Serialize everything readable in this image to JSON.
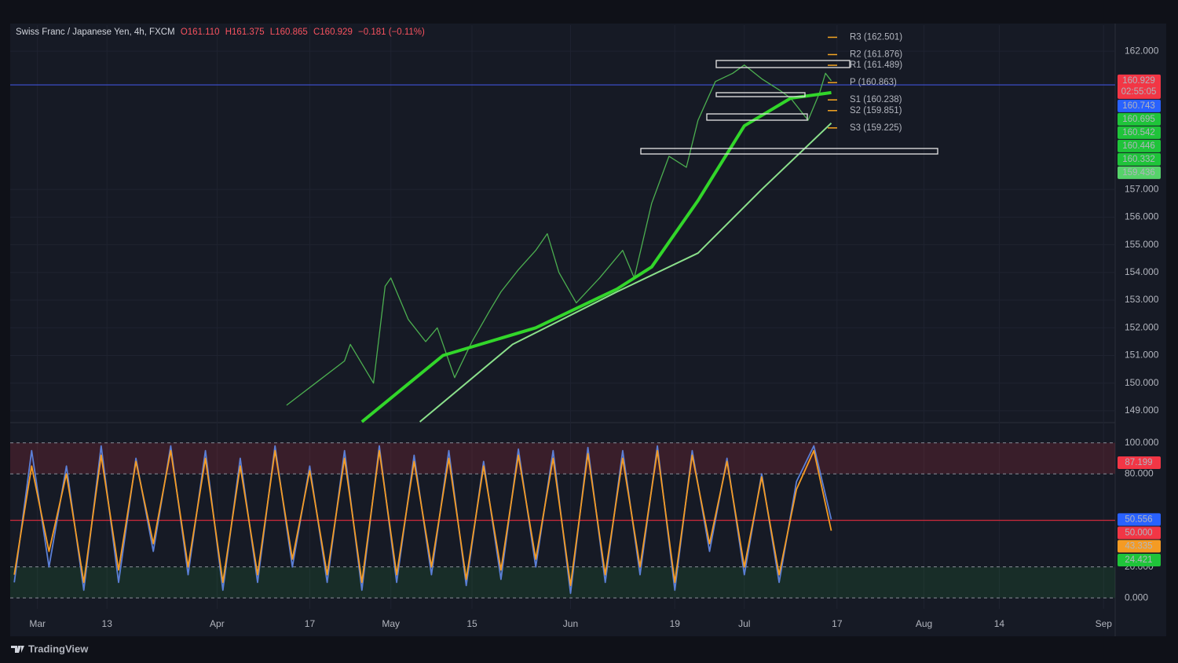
{
  "chart_data": [
    {
      "type": "line",
      "title": "Swiss Franc / Japanese Yen, 4h, FXCM",
      "ohlc": [
        "O161.110",
        "H161.375",
        "L160.865",
        "C160.929"
      ],
      "change": "−0.181 (−0.11%)",
      "xlim": [
        -4.7,
        186
      ],
      "ylim": [
        148.6,
        162.94
      ],
      "yticks": [
        {
          "value": 149,
          "label": "149.000"
        },
        {
          "value": 150,
          "label": "150.000"
        },
        {
          "value": 151,
          "label": "151.000"
        },
        {
          "value": 152,
          "label": "152.000"
        },
        {
          "value": 153,
          "label": "153.000"
        },
        {
          "value": 154,
          "label": "154.000"
        },
        {
          "value": 155,
          "label": "155.000"
        },
        {
          "value": 156,
          "label": "156.000"
        },
        {
          "value": 157,
          "label": "157.000"
        },
        {
          "value": 162,
          "label": "162.000"
        }
      ],
      "grid": true,
      "series": [
        {
          "x": [
            43,
            48,
            53,
            54,
            58,
            60,
            61,
            64,
            67,
            69,
            72,
            75,
            78,
            80,
            83,
            86,
            88,
            90,
            93,
            97,
            101,
            103,
            106,
            109,
            112,
            114,
            117,
            120,
            122,
            125,
            128,
            130,
            133,
            135,
            136,
            137
          ],
          "values": [
            149.2,
            150.0,
            150.8,
            151.4,
            150.0,
            153.5,
            153.8,
            152.3,
            151.5,
            152.0,
            150.2,
            151.5,
            152.6,
            153.3,
            154.1,
            154.8,
            155.4,
            154.0,
            152.9,
            153.8,
            154.8,
            153.8,
            156.5,
            158.2,
            157.8,
            159.5,
            160.9,
            161.2,
            161.5,
            161.0,
            160.6,
            160.3,
            159.5,
            160.5,
            161.2,
            160.929
          ],
          "color": "#4caf50",
          "width": 1.3
        },
        {
          "x": [
            56,
            70,
            86,
            100,
            106,
            114,
            122,
            130,
            137
          ],
          "values": [
            148.6,
            151.0,
            152.0,
            153.4,
            154.2,
            156.6,
            159.3,
            160.3,
            160.5
          ],
          "color": "#32d62a",
          "width": 4
        },
        {
          "x": [
            66,
            82,
            100,
            114,
            125,
            137
          ],
          "values": [
            148.6,
            151.4,
            153.3,
            154.7,
            157.0,
            159.4
          ],
          "color": "#8be08b",
          "width": 2
        }
      ],
      "pivots": [
        {
          "label": "R3 (162.501)",
          "value": 162.501
        },
        {
          "label": "R2 (161.876)",
          "value": 161.876
        },
        {
          "label": "R1 (161.489)",
          "value": 161.489
        },
        {
          "label": "P (160.863)",
          "value": 160.863
        },
        {
          "label": "S1 (160.238)",
          "value": 160.238
        },
        {
          "label": "S2 (159.851)",
          "value": 159.851
        },
        {
          "label": "S3 (159.225)",
          "value": 159.225
        }
      ],
      "price_line": {
        "value": 160.78,
        "color": "#3f51d8"
      },
      "price_tags": [
        {
          "value": 160.929,
          "label": "160.929",
          "color": "#f23645"
        },
        {
          "value": 160.743,
          "label": "160.743",
          "color": "#2962ff"
        },
        {
          "value": 160.695,
          "label": "160.695",
          "color": "#1fc43a"
        },
        {
          "value": 160.542,
          "label": "160.542",
          "color": "#1fc43a"
        },
        {
          "value": 160.446,
          "label": "160.446",
          "color": "#1fc43a"
        },
        {
          "value": 160.332,
          "label": "160.332",
          "color": "#1fc43a"
        },
        {
          "value": 159.436,
          "label": "159.436",
          "color": "#56d36a"
        }
      ],
      "countdown": "02:55:05"
    },
    {
      "type": "line",
      "xlim": [
        -4.7,
        186
      ],
      "ylim": [
        -7,
        112
      ],
      "xticks": [
        {
          "value": 0,
          "label": "Mar"
        },
        {
          "value": 12,
          "label": "13"
        },
        {
          "value": 31,
          "label": "Apr"
        },
        {
          "value": 47,
          "label": "17"
        },
        {
          "value": 61,
          "label": "May"
        },
        {
          "value": 75,
          "label": "15"
        },
        {
          "value": 92,
          "label": "Jun"
        },
        {
          "value": 110,
          "label": "19"
        },
        {
          "value": 122,
          "label": "Jul"
        },
        {
          "value": 138,
          "label": "17"
        },
        {
          "value": 153,
          "label": "Aug"
        },
        {
          "value": 166,
          "label": "14"
        },
        {
          "value": 184,
          "label": "Sep"
        }
      ],
      "yticks": [
        {
          "value": 0,
          "label": "0.000"
        },
        {
          "value": 20,
          "label": "20.000"
        },
        {
          "value": 80,
          "label": "80.000"
        },
        {
          "value": 100,
          "label": "100.000"
        }
      ],
      "upper_band": [
        80,
        100
      ],
      "lower_band": [
        0,
        20
      ],
      "midline": 50,
      "x": [
        -4,
        -1,
        2,
        5,
        8,
        11,
        14,
        17,
        20,
        23,
        26,
        29,
        32,
        35,
        38,
        41,
        44,
        47,
        50,
        53,
        56,
        59,
        62,
        65,
        68,
        71,
        74,
        77,
        80,
        83,
        86,
        89,
        92,
        95,
        98,
        101,
        104,
        107,
        110,
        113,
        116,
        119,
        122,
        125,
        128,
        131,
        134,
        137
      ],
      "series": [
        {
          "values": [
            10,
            95,
            20,
            85,
            5,
            98,
            10,
            90,
            30,
            98,
            15,
            95,
            5,
            90,
            10,
            98,
            20,
            85,
            10,
            95,
            5,
            98,
            10,
            92,
            15,
            95,
            8,
            88,
            12,
            96,
            20,
            95,
            3,
            97,
            10,
            95,
            15,
            98,
            5,
            95,
            30,
            90,
            15,
            80,
            10,
            75,
            98,
            50.556
          ],
          "color": "#5b7fd6"
        },
        {
          "values": [
            15,
            85,
            30,
            80,
            10,
            92,
            18,
            88,
            35,
            95,
            20,
            90,
            10,
            85,
            15,
            95,
            25,
            82,
            15,
            90,
            10,
            95,
            15,
            88,
            20,
            90,
            12,
            85,
            18,
            92,
            25,
            90,
            8,
            93,
            15,
            90,
            20,
            95,
            10,
            92,
            35,
            88,
            20,
            78,
            15,
            70,
            95,
            43.335
          ],
          "color": "#f59b23"
        }
      ],
      "tags": [
        {
          "value": 87.199,
          "label": "87.199",
          "color": "#f23645"
        },
        {
          "value": 50.556,
          "label": "50.556",
          "color": "#2962ff"
        },
        {
          "value": 50,
          "label": "50.000",
          "color": "#f23645"
        },
        {
          "value": 43.335,
          "label": "43.335",
          "color": "#f59b23"
        },
        {
          "value": 24.421,
          "label": "24.421",
          "color": "#1fc43a"
        }
      ]
    }
  ],
  "branding": "TradingView"
}
